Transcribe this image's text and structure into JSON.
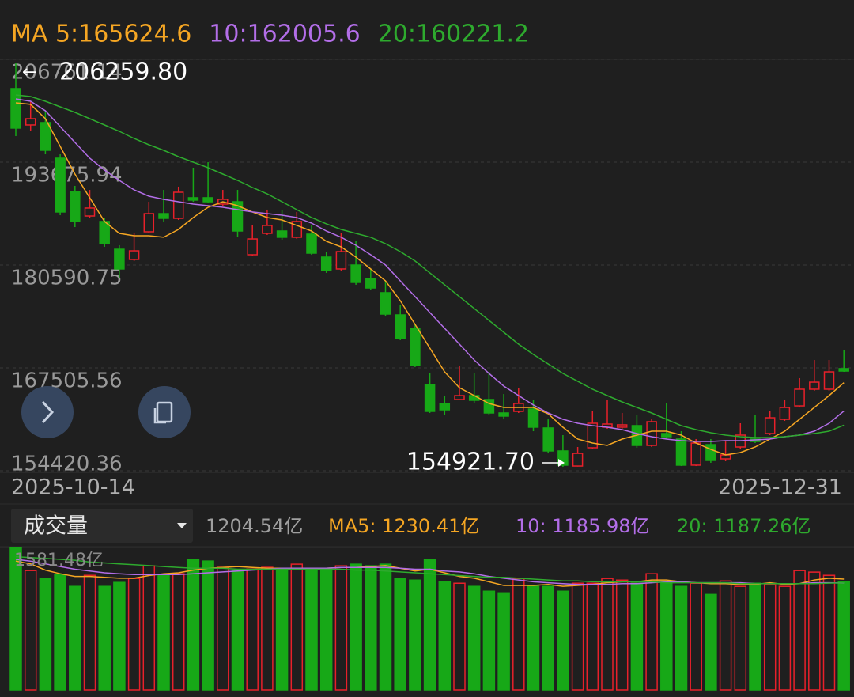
{
  "chart_data": [
    {
      "type": "candlestick",
      "categories": [
        "2025-10-14",
        null,
        null,
        null,
        null,
        null,
        null,
        null,
        null,
        null,
        null,
        null,
        null,
        null,
        null,
        null,
        null,
        null,
        null,
        null,
        null,
        null,
        null,
        null,
        null,
        null,
        null,
        null,
        null,
        null,
        null,
        null,
        null,
        null,
        null,
        null,
        null,
        null,
        null,
        null,
        null,
        null,
        null,
        null,
        null,
        null,
        null,
        null,
        null,
        null,
        null,
        null,
        null,
        null,
        null,
        null,
        "2025-12-31"
      ],
      "open": [
        203040,
        198410,
        198710,
        194180,
        189950,
        186830,
        186130,
        182600,
        181300,
        184820,
        187130,
        186530,
        189150,
        189150,
        188340,
        188640,
        181900,
        184620,
        184920,
        184120,
        184520,
        181600,
        180090,
        180590,
        178880,
        177070,
        174250,
        172540,
        165390,
        162980,
        163480,
        163980,
        163480,
        161770,
        161970,
        162270,
        159860,
        156940,
        155020,
        157340,
        159960,
        159960,
        160160,
        157640,
        159150,
        158450,
        155130,
        157740,
        155930,
        157440,
        158450,
        159150,
        160960,
        162670,
        164790,
        164790,
        167410
      ],
      "high": [
        206259.8,
        201430,
        200220,
        194680,
        190660,
        190150,
        186630,
        183110,
        184620,
        188640,
        190150,
        190560,
        192970,
        193680,
        190150,
        190150,
        185630,
        187640,
        187640,
        187340,
        185630,
        182300,
        184620,
        183610,
        180090,
        178580,
        175560,
        173040,
        166800,
        163980,
        167810,
        166800,
        167000,
        164180,
        164990,
        163480,
        160960,
        158950,
        157440,
        161970,
        163480,
        161770,
        161470,
        160960,
        162980,
        159450,
        158450,
        158450,
        158140,
        160460,
        161470,
        161970,
        163480,
        166200,
        168510,
        168510,
        169720
      ],
      "low": [
        197000,
        197700,
        194680,
        186930,
        185420,
        186630,
        182910,
        178880,
        181100,
        184620,
        186130,
        186330,
        188640,
        188540,
        188140,
        184120,
        181700,
        184420,
        183810,
        183910,
        181900,
        179590,
        179890,
        178080,
        177470,
        174050,
        171030,
        167610,
        161770,
        161570,
        163380,
        163080,
        161570,
        160960,
        161770,
        159450,
        156630,
        154921.7,
        154960,
        157140,
        159760,
        159760,
        157340,
        157440,
        158450,
        155020,
        155020,
        155430,
        155630,
        157240,
        157940,
        158950,
        160760,
        162470,
        164590,
        164590,
        167000
      ],
      "close": [
        198010,
        199210,
        195190,
        187340,
        186130,
        187840,
        183310,
        180090,
        182400,
        187130,
        186530,
        189850,
        188850,
        188640,
        188950,
        184920,
        183910,
        185630,
        184120,
        186130,
        182100,
        179890,
        182300,
        178380,
        177670,
        174350,
        171230,
        167810,
        161970,
        162170,
        163980,
        163380,
        161770,
        161370,
        162980,
        159960,
        156940,
        155130,
        156630,
        160460,
        160360,
        160260,
        157640,
        160660,
        158750,
        155130,
        157940,
        155730,
        156430,
        158950,
        158140,
        161160,
        162470,
        164790,
        165690,
        167000,
        167100
      ],
      "up_color": "#e8202a",
      "down_color": "#17a817",
      "lines": [
        {
          "name": "MA 5:165624.6",
          "color": "#f5a623",
          "values": [
            201230,
            201030,
            199210,
            195690,
            192170,
            189150,
            186130,
            184620,
            184320,
            184320,
            184120,
            185120,
            186630,
            187940,
            188640,
            188140,
            187340,
            186630,
            186330,
            185630,
            184920,
            183610,
            182910,
            181600,
            180090,
            178580,
            176060,
            173040,
            170020,
            167000,
            164990,
            163980,
            162980,
            162470,
            162470,
            162470,
            161670,
            159960,
            158450,
            157940,
            157640,
            158450,
            158950,
            159450,
            159450,
            158950,
            157940,
            157140,
            156430,
            156740,
            157440,
            158450,
            159450,
            160960,
            162470,
            163980,
            165624.6
          ]
        },
        {
          "name": "10:162005.6",
          "color": "#b36ee8",
          "values": [
            201730,
            201430,
            200220,
            198210,
            196190,
            194180,
            192670,
            191360,
            190150,
            189350,
            188950,
            188640,
            188340,
            188140,
            187940,
            187640,
            187340,
            187130,
            186930,
            186630,
            185930,
            184920,
            184120,
            183110,
            181900,
            180590,
            178580,
            176570,
            174550,
            172540,
            170530,
            168510,
            166800,
            165190,
            163980,
            162780,
            161770,
            160960,
            160460,
            160160,
            159960,
            159650,
            159150,
            158750,
            158450,
            158250,
            158140,
            158140,
            158250,
            158250,
            158350,
            158450,
            158750,
            158950,
            159450,
            160460,
            162005.6
          ]
        },
        {
          "name": "20:160221.2",
          "color": "#2eaa2e",
          "values": [
            202230,
            202030,
            201430,
            200720,
            200020,
            199210,
            198410,
            197600,
            196700,
            195890,
            195190,
            194380,
            193680,
            192970,
            192170,
            191360,
            190460,
            189650,
            188640,
            187640,
            186630,
            185830,
            185120,
            184620,
            184120,
            183310,
            182300,
            181100,
            179590,
            178080,
            176570,
            175060,
            173550,
            172040,
            170530,
            169220,
            168010,
            166800,
            165800,
            164790,
            163980,
            163180,
            162470,
            161770,
            160960,
            160160,
            159650,
            159250,
            158950,
            158750,
            158650,
            158650,
            158750,
            158950,
            159150,
            159450,
            160221.2
          ]
        }
      ],
      "ylim": [
        154420.36,
        206761.14
      ],
      "yticks": [
        206761.14,
        193675.94,
        180590.75,
        167505.56,
        154420.36
      ],
      "grid": true,
      "annotations": [
        {
          "text": "206259.80"
        },
        {
          "text": "154921.70"
        }
      ]
    },
    {
      "type": "bar",
      "selector": "成交量",
      "current_label": "1204.54亿",
      "values": [
        1581.48,
        1325,
        1237,
        1281,
        1149,
        1272,
        1149,
        1193,
        1237,
        1378,
        1272,
        1290,
        1449,
        1431,
        1361,
        1325,
        1343,
        1361,
        1343,
        1396,
        1325,
        1343,
        1378,
        1396,
        1378,
        1396,
        1237,
        1219,
        1449,
        1202,
        1184,
        1149,
        1096,
        1078,
        1237,
        1149,
        1149,
        1096,
        1184,
        1184,
        1237,
        1219,
        1184,
        1290,
        1184,
        1149,
        1184,
        1060,
        1210,
        1149,
        1184,
        1166,
        1149,
        1325,
        1308,
        1272,
        1204.54
      ],
      "lines": [
        {
          "name": "MA5: 1230.41亿",
          "color": "#f5a623",
          "values": [
            1430,
            1400,
            1330,
            1290,
            1260,
            1260,
            1250,
            1240,
            1240,
            1270,
            1290,
            1300,
            1330,
            1350,
            1360,
            1370,
            1360,
            1350,
            1350,
            1350,
            1350,
            1350,
            1360,
            1360,
            1370,
            1380,
            1350,
            1320,
            1340,
            1300,
            1260,
            1240,
            1200,
            1160,
            1160,
            1160,
            1170,
            1150,
            1160,
            1170,
            1190,
            1200,
            1200,
            1220,
            1220,
            1200,
            1190,
            1180,
            1180,
            1170,
            1170,
            1190,
            1170,
            1180,
            1220,
            1240,
            1230.41
          ]
        },
        {
          "name": "10: 1185.98亿",
          "color": "#b36ee8",
          "values": [
            1450,
            1430,
            1400,
            1370,
            1340,
            1320,
            1300,
            1290,
            1280,
            1280,
            1280,
            1280,
            1290,
            1300,
            1310,
            1320,
            1330,
            1340,
            1350,
            1350,
            1350,
            1350,
            1360,
            1360,
            1360,
            1360,
            1350,
            1340,
            1340,
            1320,
            1310,
            1290,
            1260,
            1240,
            1220,
            1200,
            1190,
            1180,
            1170,
            1170,
            1170,
            1180,
            1180,
            1190,
            1200,
            1200,
            1190,
            1190,
            1190,
            1190,
            1180,
            1180,
            1180,
            1180,
            1190,
            1190,
            1185.98
          ]
        },
        {
          "name": "20: 1187.26亿",
          "color": "#2eaa2e",
          "values": [
            1480,
            1470,
            1460,
            1450,
            1440,
            1420,
            1410,
            1400,
            1390,
            1380,
            1370,
            1360,
            1350,
            1350,
            1350,
            1340,
            1340,
            1340,
            1340,
            1340,
            1340,
            1340,
            1340,
            1330,
            1330,
            1320,
            1310,
            1300,
            1290,
            1280,
            1270,
            1260,
            1250,
            1250,
            1240,
            1230,
            1220,
            1210,
            1210,
            1200,
            1200,
            1200,
            1200,
            1200,
            1190,
            1190,
            1190,
            1190,
            1190,
            1180,
            1180,
            1180,
            1180,
            1180,
            1180,
            1185,
            1187.26
          ]
        }
      ],
      "ylim": [
        0,
        1581.48
      ],
      "yticks": [
        {
          "value": 1581.48,
          "label": "1581.48亿"
        }
      ]
    }
  ]
}
